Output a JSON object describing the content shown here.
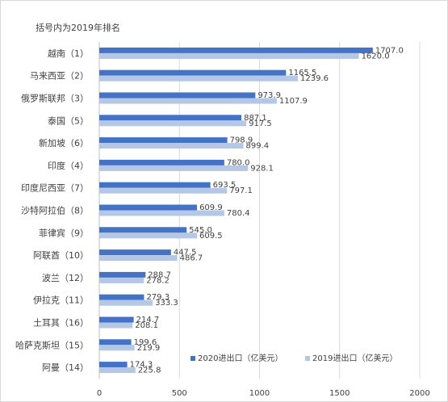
{
  "note": "括号内为2019年排名",
  "chart_data": {
    "type": "bar",
    "orientation": "horizontal",
    "categories": [
      "越南（1）",
      "马来西亚（2）",
      "俄罗斯联邦（3）",
      "泰国（5）",
      "新加坡（6）",
      "印度（4）",
      "印度尼西亚（7）",
      "沙特阿拉伯（8）",
      "菲律宾（9）",
      "阿联酋（10）",
      "波兰（12）",
      "伊拉克（11）",
      "土耳其（16）",
      "哈萨克斯坦（15）",
      "阿曼（14）"
    ],
    "series": [
      {
        "name": "2020进出口（亿美元）",
        "color": "#4472c4",
        "values": [
          1707.0,
          1165.5,
          973.9,
          887.1,
          798.9,
          780.0,
          693.5,
          609.9,
          545.0,
          447.5,
          288.7,
          279.3,
          214.7,
          199.6,
          174.3
        ]
      },
      {
        "name": "2019进出口（亿美元）",
        "color": "#b4c7e7",
        "values": [
          1620.0,
          1239.6,
          1107.9,
          917.5,
          899.4,
          928.1,
          797.1,
          780.4,
          609.5,
          486.7,
          278.2,
          333.3,
          208.1,
          219.9,
          225.8
        ]
      }
    ],
    "value_labels": [
      [
        "1707.0",
        "1165.5",
        "973.9",
        "887.1",
        "798.9",
        "780.0",
        "693.5",
        "609.9",
        "545.0",
        "447.5",
        "288.7",
        "279.3",
        "214.7",
        "199.6",
        "174.3"
      ],
      [
        "1620.0",
        "1239.6",
        "1107.9",
        "917.5",
        "899.4",
        "928.1",
        "797.1",
        "780.4",
        "609.5",
        "486.7",
        "278.2",
        "333.3",
        "208.1",
        "219.9",
        "225.8"
      ]
    ],
    "xlim": [
      0,
      2000
    ],
    "xticks": [
      "0",
      "500",
      "1000",
      "1500",
      "2000"
    ],
    "xtick_values": [
      0,
      500,
      1000,
      1500,
      2000
    ],
    "legend_position": "bottom-right",
    "grid": true
  }
}
